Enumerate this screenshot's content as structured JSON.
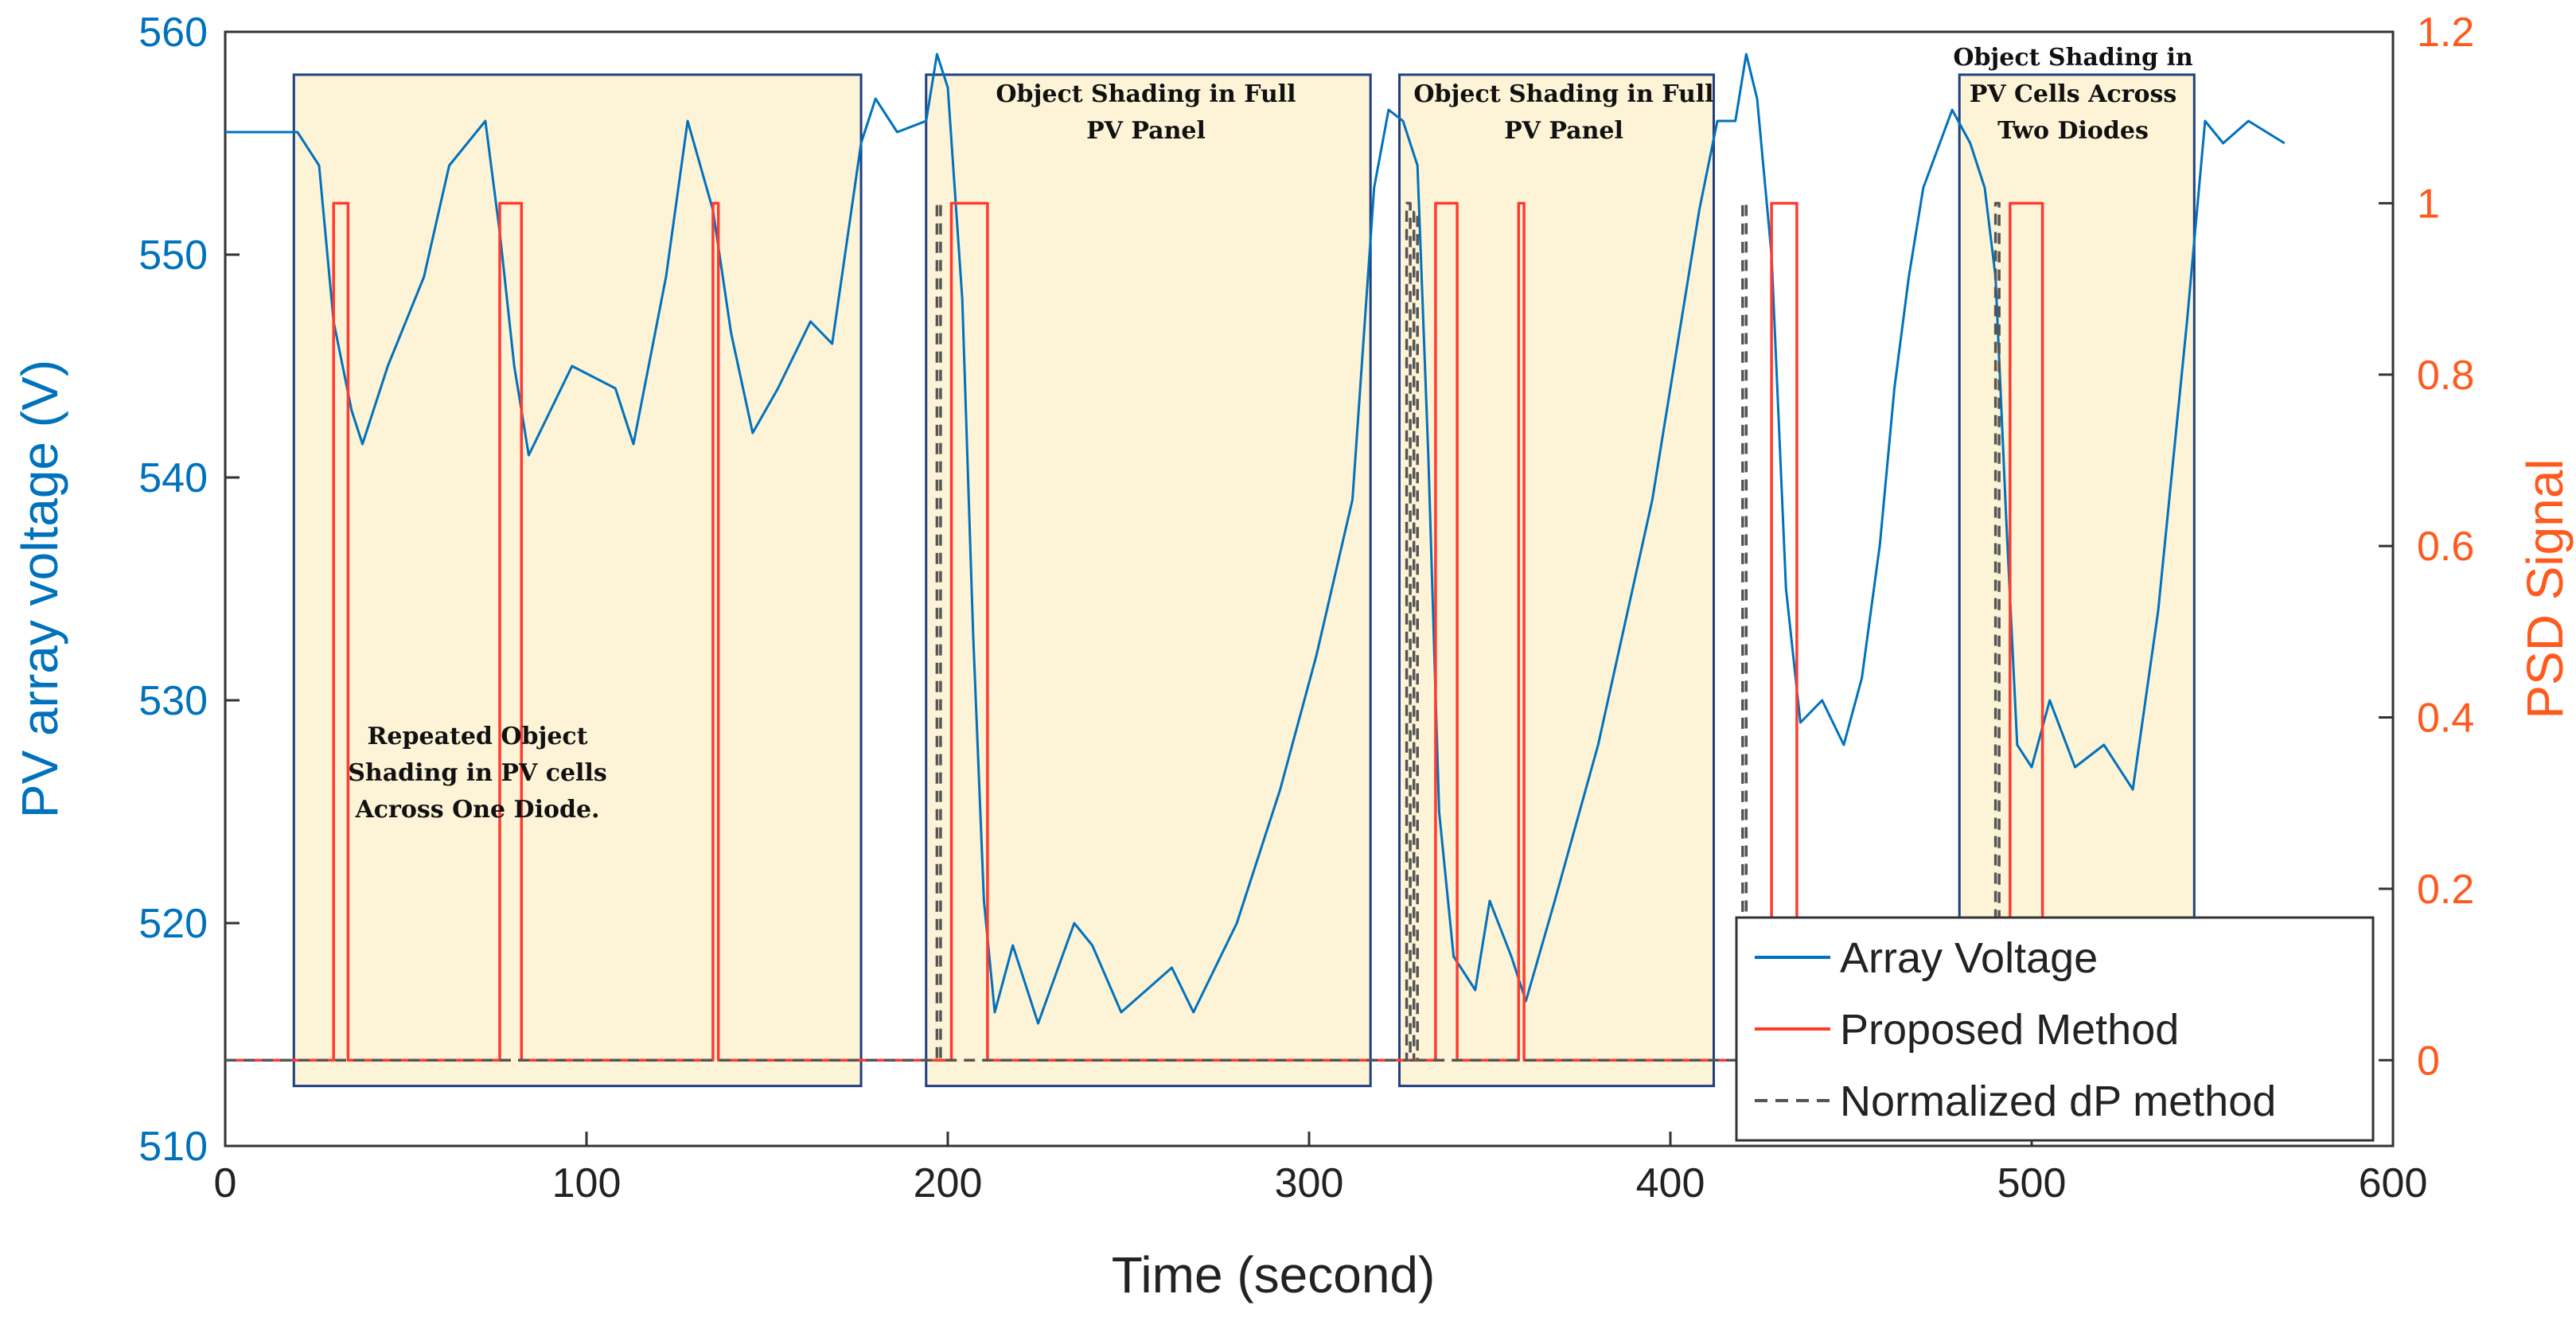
{
  "chart_data": {
    "type": "line",
    "xlabel": "Time (second)",
    "ylabel_left": "PV array voltage  (V)",
    "ylabel_right": "PSD Signal",
    "xlim": [
      0,
      600
    ],
    "ylim_left": [
      510,
      560
    ],
    "ylim_right": [
      -0.1,
      1.2
    ],
    "xticks": [
      "0",
      "100",
      "200",
      "300",
      "400",
      "500",
      "600"
    ],
    "yticks_left": [
      "510",
      "520",
      "530",
      "540",
      "550",
      "560"
    ],
    "yticks_right": [
      "0",
      "0.2",
      "0.4",
      "0.6",
      "0.8",
      "1",
      "1.2"
    ],
    "colors": {
      "voltage": "#0072bd",
      "proposed": "#ff3b30",
      "normalized": "#555555",
      "shade": "#fdf3d6",
      "boxEdge": "#1f3f80"
    },
    "regions": [
      {
        "x0": 19,
        "x1": 176,
        "label": "Repeated Object Shading in PV cells Across One Diode."
      },
      {
        "x0": 194,
        "x1": 317,
        "label": "Object Shading in Full PV Panel"
      },
      {
        "x0": 325,
        "x1": 412,
        "label": "Object Shading in Full PV Panel"
      },
      {
        "x0": 480,
        "x1": 545,
        "label": "Object Shading in PV Cells Across Two Diodes"
      }
    ],
    "series": [
      {
        "name": "Array Voltage",
        "axis": "left",
        "style": "solid",
        "points": [
          [
            0,
            555.5
          ],
          [
            12,
            555.5
          ],
          [
            20,
            555.5
          ],
          [
            26,
            554
          ],
          [
            30,
            547
          ],
          [
            35,
            543
          ],
          [
            38,
            541.5
          ],
          [
            45,
            545
          ],
          [
            55,
            549
          ],
          [
            62,
            554
          ],
          [
            72,
            556
          ],
          [
            76,
            551
          ],
          [
            80,
            545
          ],
          [
            84,
            541
          ],
          [
            90,
            543
          ],
          [
            96,
            545
          ],
          [
            108,
            544
          ],
          [
            113,
            541.5
          ],
          [
            122,
            549
          ],
          [
            128,
            556
          ],
          [
            135,
            552
          ],
          [
            140,
            546.5
          ],
          [
            146,
            542
          ],
          [
            153,
            544
          ],
          [
            162,
            547
          ],
          [
            168,
            546
          ],
          [
            176,
            555
          ],
          [
            180,
            557
          ],
          [
            186,
            555.5
          ],
          [
            194,
            556
          ],
          [
            197,
            559
          ],
          [
            200,
            557.5
          ],
          [
            204,
            548
          ],
          [
            207,
            533
          ],
          [
            210,
            521
          ],
          [
            213,
            516
          ],
          [
            218,
            519
          ],
          [
            225,
            515.5
          ],
          [
            235,
            520
          ],
          [
            240,
            519
          ],
          [
            248,
            516
          ],
          [
            262,
            518
          ],
          [
            268,
            516
          ],
          [
            280,
            520
          ],
          [
            292,
            526
          ],
          [
            302,
            532
          ],
          [
            312,
            539
          ],
          [
            318,
            553
          ],
          [
            322,
            556.5
          ],
          [
            326,
            556
          ],
          [
            330,
            554
          ],
          [
            333,
            541
          ],
          [
            336,
            525
          ],
          [
            340,
            518.5
          ],
          [
            346,
            517
          ],
          [
            350,
            521
          ],
          [
            356,
            518.5
          ],
          [
            360,
            516.5
          ],
          [
            368,
            521
          ],
          [
            380,
            528
          ],
          [
            395,
            539
          ],
          [
            408,
            552
          ],
          [
            413,
            556
          ],
          [
            418,
            556
          ],
          [
            421,
            559
          ],
          [
            424,
            557
          ],
          [
            428,
            550
          ],
          [
            432,
            535
          ],
          [
            436,
            529
          ],
          [
            442,
            530
          ],
          [
            448,
            528
          ],
          [
            453,
            531
          ],
          [
            458,
            537
          ],
          [
            462,
            544
          ],
          [
            466,
            549
          ],
          [
            470,
            553
          ],
          [
            478,
            556.5
          ],
          [
            483,
            555
          ],
          [
            487,
            553
          ],
          [
            490,
            549
          ],
          [
            493,
            538
          ],
          [
            496,
            528
          ],
          [
            500,
            527
          ],
          [
            505,
            530
          ],
          [
            512,
            527
          ],
          [
            520,
            528
          ],
          [
            528,
            526
          ],
          [
            535,
            534
          ],
          [
            543,
            547
          ],
          [
            548,
            556
          ],
          [
            553,
            555
          ],
          [
            560,
            556
          ],
          [
            570,
            555
          ]
        ]
      },
      {
        "name": "Proposed Method",
        "axis": "right",
        "style": "solid",
        "points": [
          [
            0,
            0
          ],
          [
            30,
            0
          ],
          [
            30,
            1
          ],
          [
            34,
            1
          ],
          [
            34,
            0
          ],
          [
            76,
            0
          ],
          [
            76,
            1
          ],
          [
            82,
            1
          ],
          [
            82,
            0
          ],
          [
            135,
            0
          ],
          [
            135,
            1
          ],
          [
            136.5,
            1
          ],
          [
            136.5,
            0
          ],
          [
            201,
            0
          ],
          [
            201,
            1
          ],
          [
            211,
            1
          ],
          [
            211,
            0
          ],
          [
            335,
            0
          ],
          [
            335,
            1
          ],
          [
            341,
            1
          ],
          [
            341,
            0
          ],
          [
            358,
            0
          ],
          [
            358,
            1
          ],
          [
            359.5,
            1
          ],
          [
            359.5,
            0
          ],
          [
            428,
            0
          ],
          [
            428,
            1
          ],
          [
            435,
            1
          ],
          [
            435,
            0
          ],
          [
            494,
            0
          ],
          [
            494,
            1
          ],
          [
            503,
            1
          ],
          [
            503,
            0
          ],
          [
            575,
            0
          ]
        ]
      },
      {
        "name": "Normalized dP method",
        "axis": "right",
        "style": "dashed",
        "points": [
          [
            0,
            0
          ],
          [
            197,
            0
          ],
          [
            197,
            1
          ],
          [
            198,
            1
          ],
          [
            198,
            0
          ],
          [
            327,
            0
          ],
          [
            327,
            1
          ],
          [
            328,
            1
          ],
          [
            328,
            0
          ],
          [
            329,
            0
          ],
          [
            329,
            0.99
          ],
          [
            330,
            0.99
          ],
          [
            330,
            0
          ],
          [
            420,
            0
          ],
          [
            420,
            1
          ],
          [
            421,
            1
          ],
          [
            421,
            0
          ],
          [
            490,
            0
          ],
          [
            490,
            1
          ],
          [
            491,
            1
          ],
          [
            491,
            0
          ],
          [
            575,
            0
          ]
        ]
      }
    ],
    "legend": {
      "position": "bottom-right",
      "entries": [
        "Array Voltage",
        "Proposed Method",
        "Normalized dP method"
      ]
    }
  }
}
